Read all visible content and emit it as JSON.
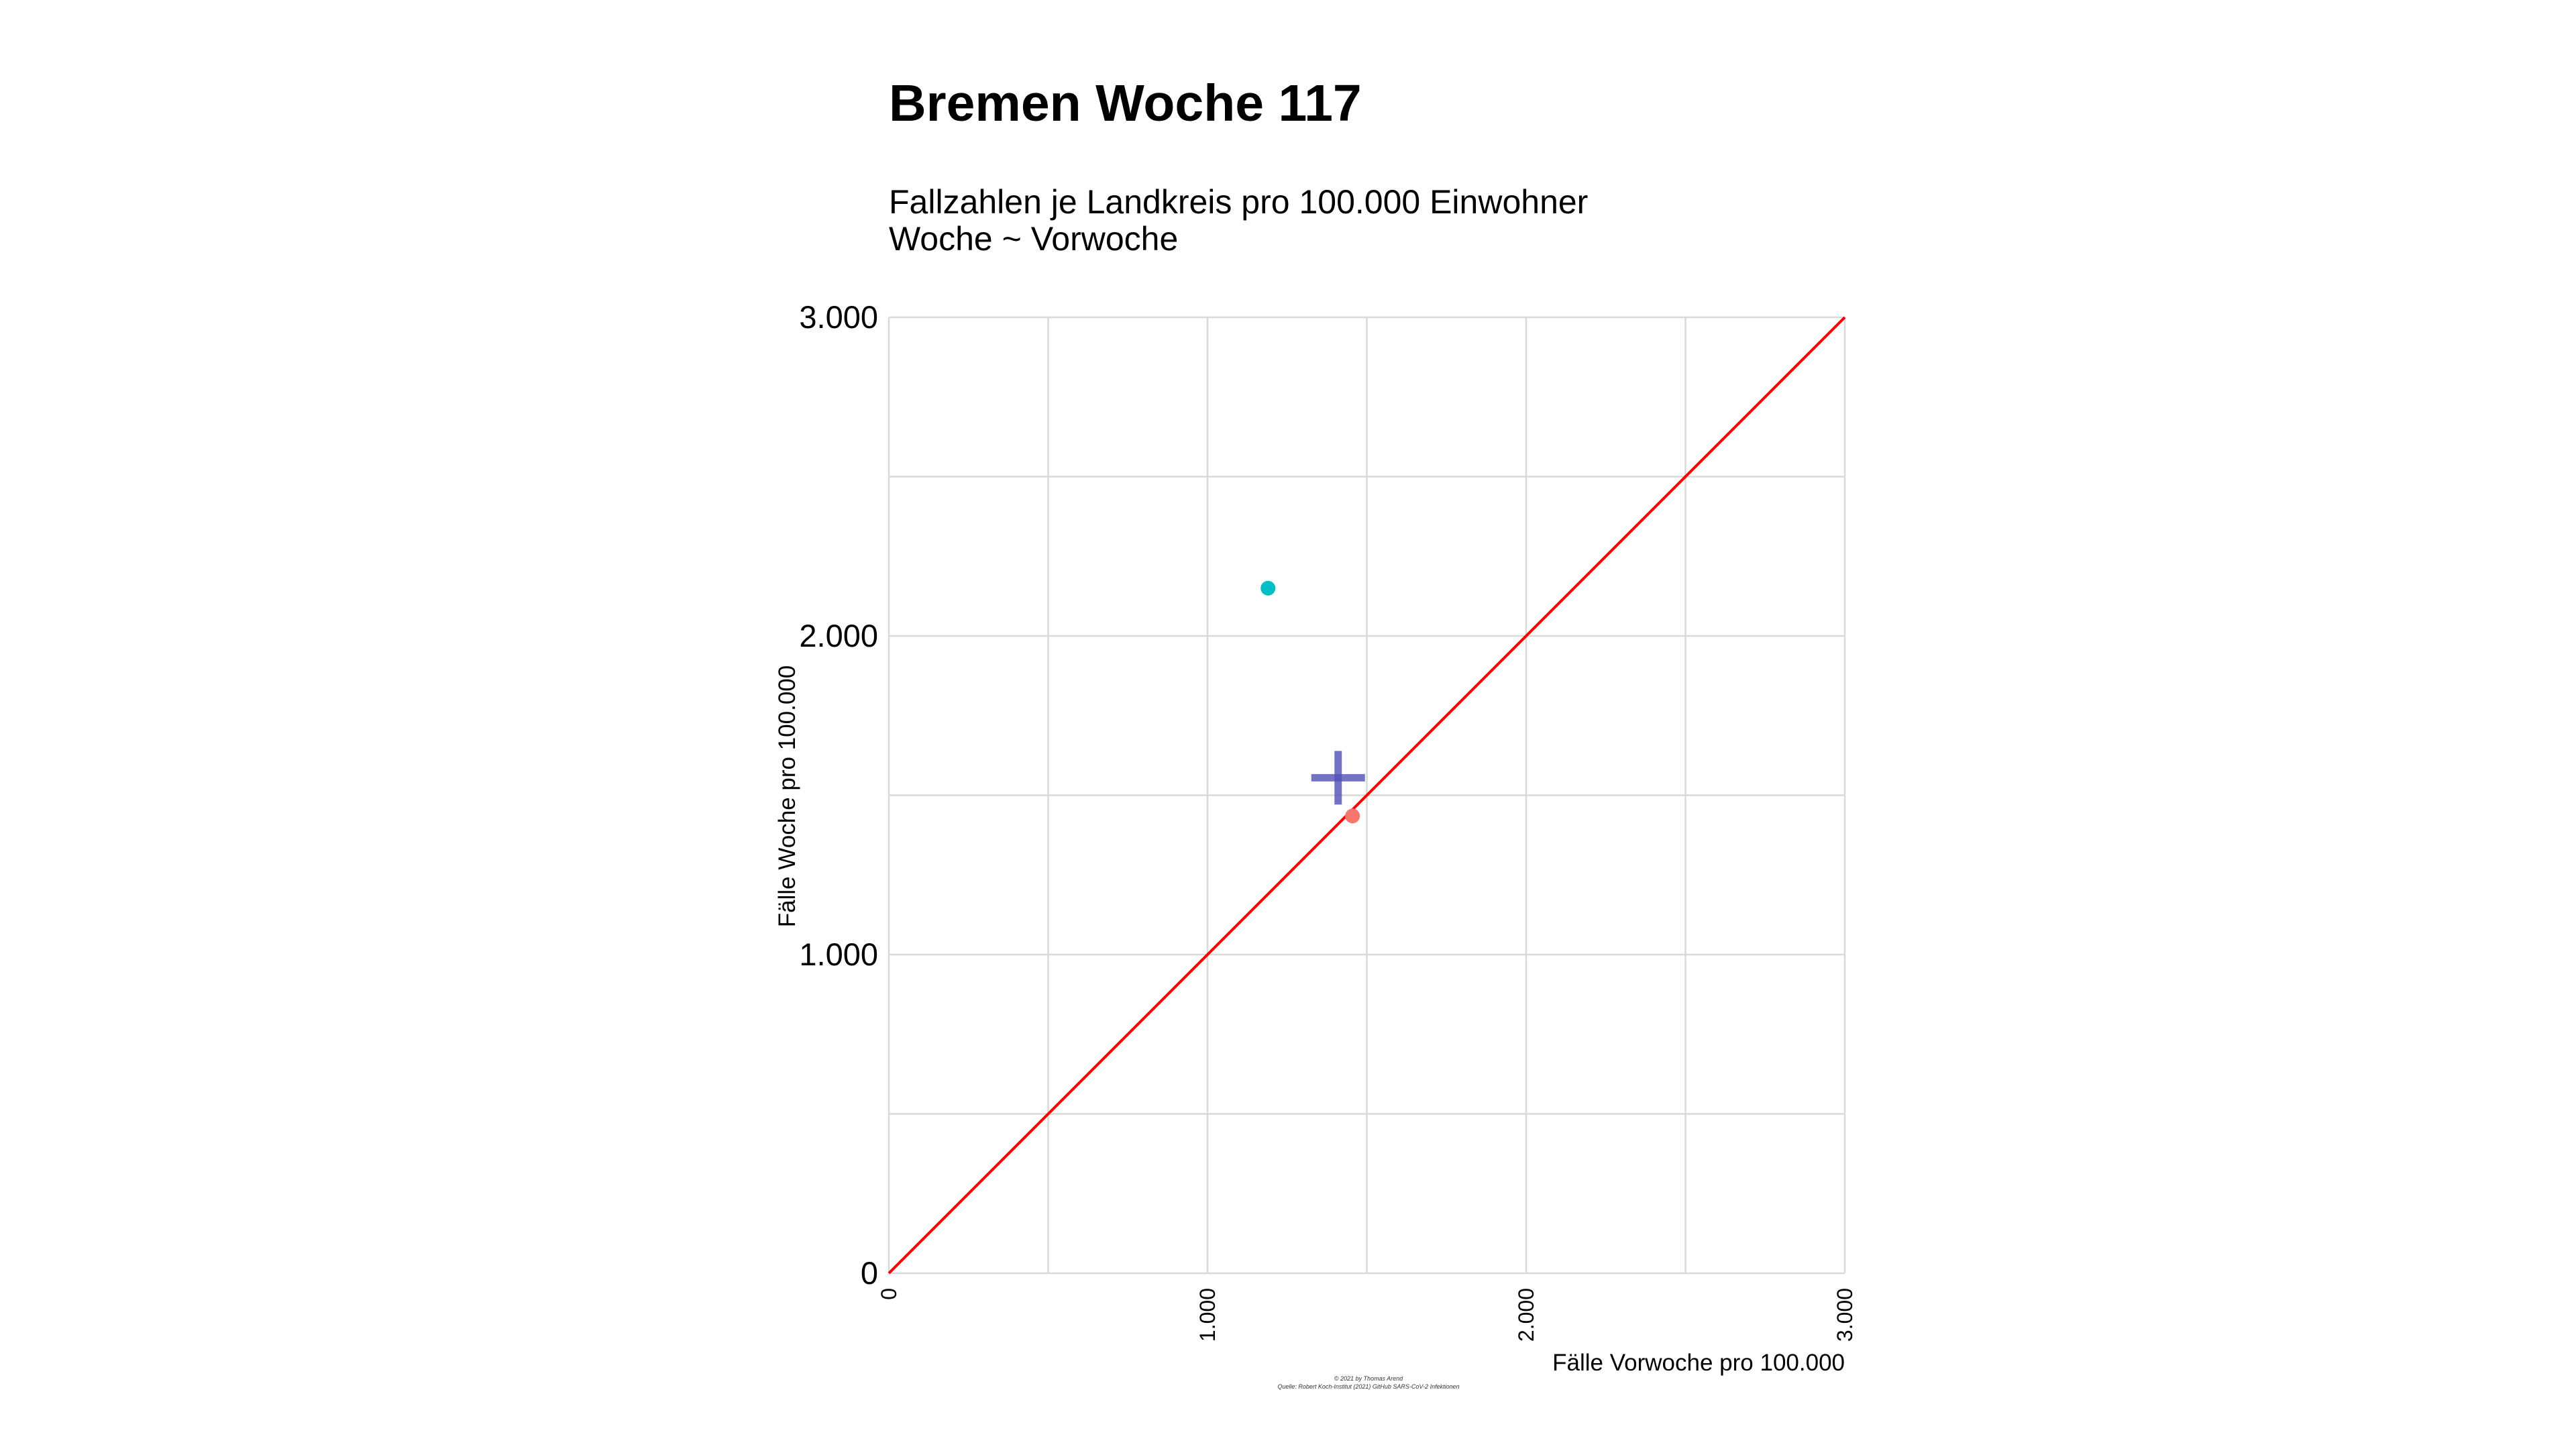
{
  "chart_data": {
    "type": "scatter",
    "title": "Bremen Woche 117",
    "subtitle_lines": [
      "Fallzahlen je Landkreis pro 100.000 Einwohner",
      "Woche ~ Vorwoche"
    ],
    "xlabel": "Fälle Vorwoche pro 100.000",
    "ylabel": "Fälle Woche pro 100.000",
    "xlim": [
      0,
      3000
    ],
    "ylim": [
      0,
      3000
    ],
    "x_ticks": [
      0,
      1000,
      2000,
      3000
    ],
    "x_tick_labels": [
      "0",
      "1.000",
      "2.000",
      "3.000"
    ],
    "y_ticks": [
      0,
      1000,
      2000,
      3000
    ],
    "y_tick_labels": [
      "0",
      "1.000",
      "2.000",
      "3.000"
    ],
    "minor_gridlines": [
      500,
      1500,
      2500
    ],
    "grid": true,
    "legend": "none",
    "points": [
      {
        "x": 1190,
        "y": 2150,
        "color": "#00bfc4"
      },
      {
        "x": 1455,
        "y": 1435,
        "color": "#f8766d"
      }
    ],
    "mean_marker": {
      "x": 1410,
      "y": 1555,
      "color": "#5050b8",
      "shape": "cross"
    },
    "reference_line": {
      "from": [
        0,
        0
      ],
      "to": [
        3000,
        3000
      ],
      "color": "#ff0000"
    },
    "caption_lines": [
      "© 2021 by Thomas Arend",
      "Quelle: Robert Koch-Institut (2021) GitHub SARS-CoV-2 Infektionen"
    ]
  }
}
